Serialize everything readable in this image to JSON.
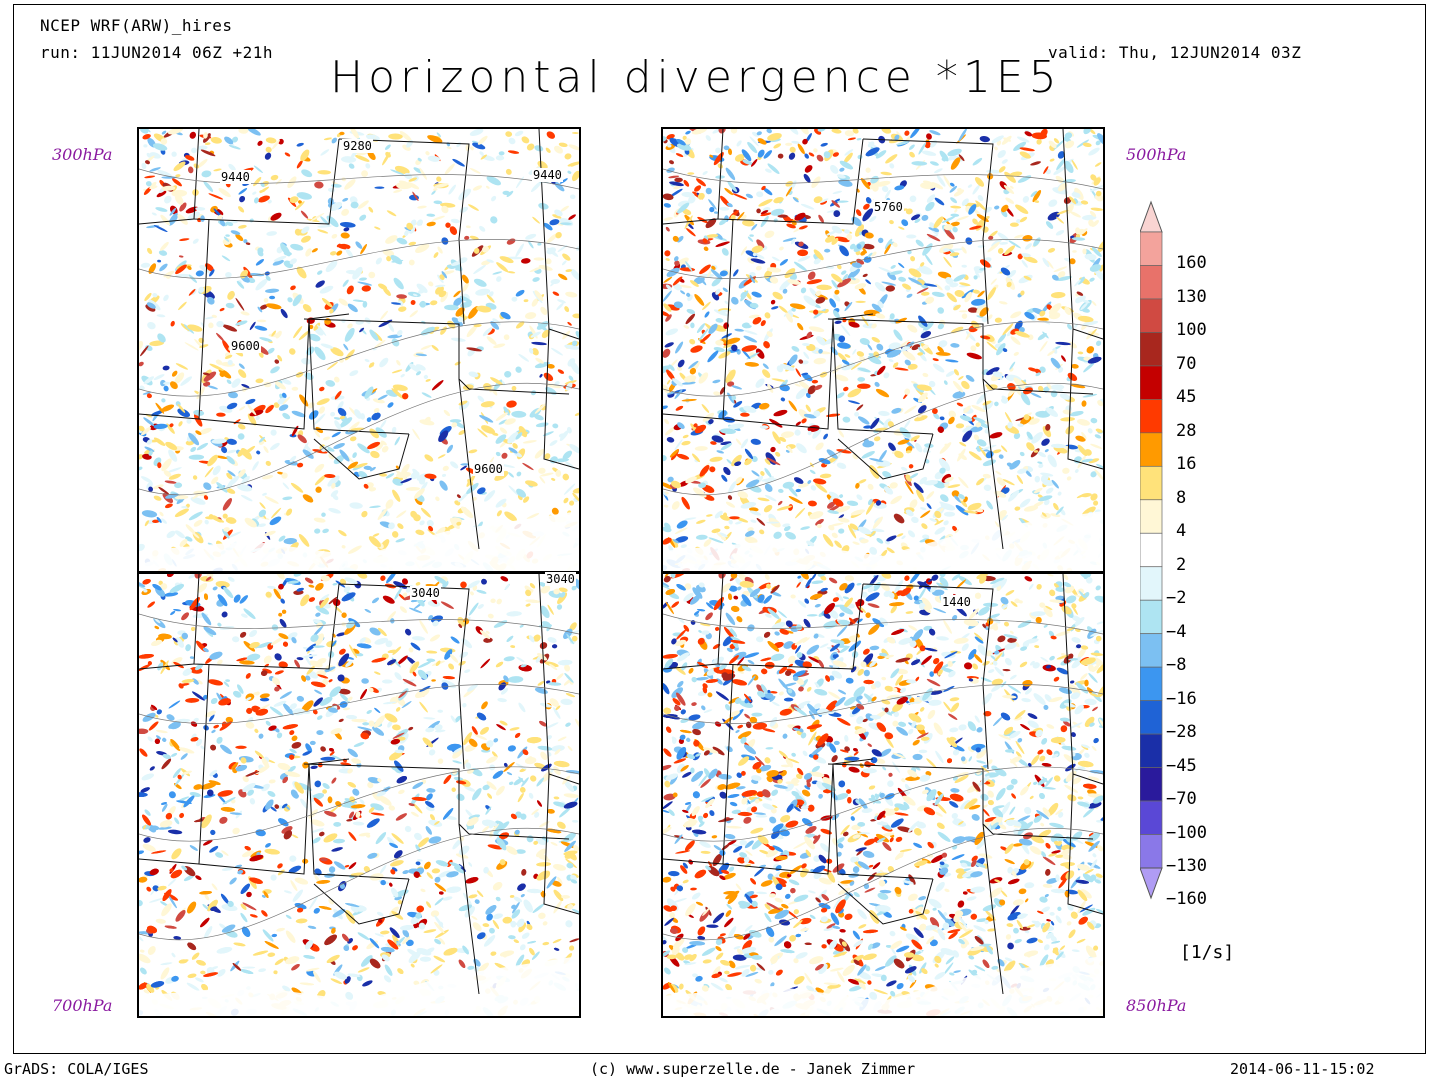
{
  "header": {
    "model": "NCEP WRF(ARW)_hires",
    "run": "run: 11JUN2014 06Z +21h",
    "valid": "valid: Thu, 12JUN2014 03Z",
    "title": "Horizontal divergence *1E5"
  },
  "panels": [
    {
      "level": "300hPa",
      "contours": [
        "9280",
        "9440",
        "9440",
        "9600",
        "9600"
      ]
    },
    {
      "level": "500hPa",
      "contours": [
        "5760"
      ]
    },
    {
      "level": "700hPa",
      "contours": [
        "3040",
        "3040"
      ]
    },
    {
      "level": "850hPa",
      "contours": [
        "1440"
      ]
    }
  ],
  "colorbar": {
    "unit": "[1/s]",
    "levels": [
      "160",
      "130",
      "100",
      "70",
      "45",
      "28",
      "16",
      "8",
      "4",
      "2",
      "−2",
      "−4",
      "−8",
      "−16",
      "−28",
      "−45",
      "−70",
      "−100",
      "−130",
      "−160"
    ],
    "colors": [
      "#f9d4d2",
      "#f3a39c",
      "#e8726a",
      "#d04a42",
      "#a8271e",
      "#c40000",
      "#ff3a00",
      "#ff9a00",
      "#ffe27a",
      "#fff7d6",
      "#ffffff",
      "#e2f6fb",
      "#aee4f2",
      "#7cc0f2",
      "#3c96f0",
      "#1f63d6",
      "#1a2fa8",
      "#2a1a9c",
      "#5a48d6",
      "#8a78e8",
      "#b09cf4"
    ]
  },
  "footer": {
    "left": "GrADS: COLA/IGES",
    "center": "(c) www.superzelle.de - Janek Zimmer",
    "right": "2014-06-11-15:02"
  }
}
